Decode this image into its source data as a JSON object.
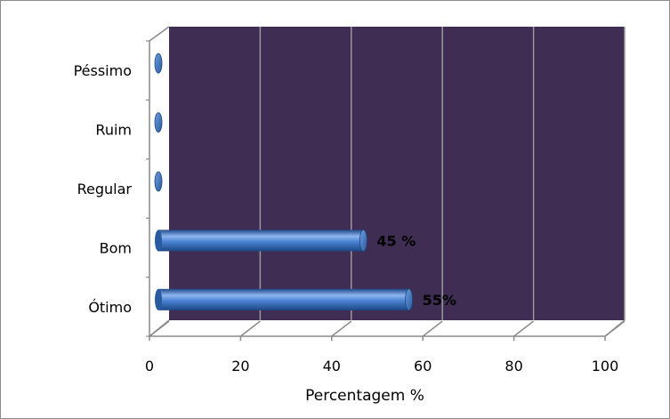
{
  "chart_data": {
    "type": "bar",
    "orientation": "horizontal",
    "categories": [
      "Péssimo",
      "Ruim",
      "Regular",
      "Bom",
      "Ótimo"
    ],
    "values": [
      0,
      0,
      0,
      45,
      55
    ],
    "data_labels": [
      "",
      "",
      "",
      "45 %",
      "55%"
    ],
    "xlabel": "Percentagem %",
    "ylabel": "",
    "xlim": [
      0,
      100
    ],
    "xticks": [
      0,
      20,
      40,
      60,
      80,
      100
    ],
    "xtick_labels": [
      "0",
      "20",
      "40",
      "60",
      "80",
      "100"
    ],
    "grid": true,
    "legend": "none",
    "style": "3d-cylinder",
    "colors": {
      "plot_background": "#3f2d53",
      "bar": "#3f78c8",
      "bar_highlight": "#8fb6ee",
      "bar_shadow": "#1f4a8a",
      "gridline": "#9a9a9a",
      "axis": "#8a8a8a"
    }
  }
}
